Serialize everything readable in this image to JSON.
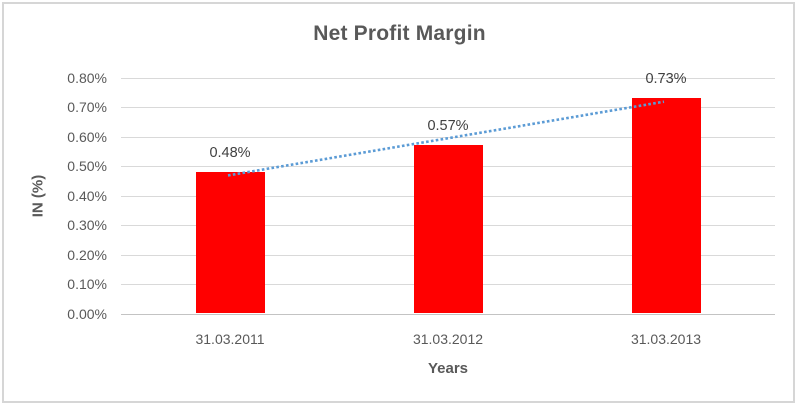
{
  "chart_data": {
    "type": "bar",
    "title": "Net Profit Margin",
    "xlabel": "Years",
    "ylabel": "IN (%)",
    "categories": [
      "31.03.2011",
      "31.03.2012",
      "31.03.2013"
    ],
    "values": [
      0.48,
      0.57,
      0.73
    ],
    "data_labels": [
      "0.48%",
      "0.57%",
      "0.73%"
    ],
    "y_ticks": [
      "0.80%",
      "0.70%",
      "0.60%",
      "0.50%",
      "0.40%",
      "0.30%",
      "0.20%",
      "0.10%",
      "0.00%"
    ],
    "ylim": [
      0,
      0.8
    ],
    "grid": true,
    "legend": "none",
    "trendline": {
      "style": "dotted",
      "color": "#5b9bd5",
      "from_value": 0.468,
      "to_value": 0.718
    },
    "colors": {
      "bar": "#ff0000",
      "grid": "#d9d9d9",
      "axis_line": "#c3c3c3",
      "tick_text": "#595959",
      "title_text": "#595959",
      "data_label_text": "#404040"
    }
  }
}
